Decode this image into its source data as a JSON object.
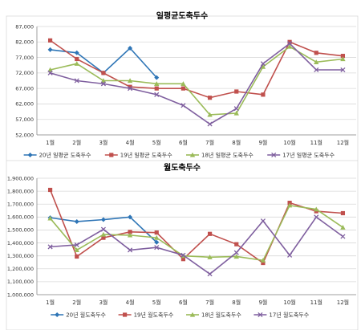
{
  "chart_data": [
    {
      "type": "line",
      "title": "일평균도축두수",
      "categories": [
        "1월",
        "2월",
        "3월",
        "4월",
        "5월",
        "6월",
        "7월",
        "8월",
        "9월",
        "10월",
        "11월",
        "12월"
      ],
      "ylim": [
        52000,
        87000
      ],
      "yticks": [
        "52,000",
        "57,000",
        "62,000",
        "67,000",
        "72,000",
        "77,000",
        "82,000",
        "87,000"
      ],
      "ytick_values": [
        52000,
        57000,
        62000,
        67000,
        72000,
        77000,
        82000,
        87000
      ],
      "grid": true,
      "legend": "bottom",
      "series": [
        {
          "name": "20년 일평균 도축두수",
          "color": "#2e75b6",
          "marker": "diamond",
          "values": [
            79500,
            78500,
            72000,
            80000,
            70500,
            null,
            null,
            null,
            null,
            null,
            null,
            null
          ]
        },
        {
          "name": "19년 일평균 도축두수",
          "color": "#c0504d",
          "marker": "square",
          "values": [
            82500,
            76500,
            72000,
            67500,
            67000,
            67000,
            64000,
            66000,
            65000,
            82000,
            78500,
            77500
          ]
        },
        {
          "name": "18년 일평균 도축두수",
          "color": "#9bbb59",
          "marker": "triangle",
          "values": [
            73000,
            75000,
            69500,
            69500,
            68500,
            68500,
            58500,
            59000,
            74000,
            80500,
            75500,
            76500
          ]
        },
        {
          "name": "17년 일평균 도축두수",
          "color": "#7f5f9f",
          "marker": "x",
          "values": [
            72000,
            69500,
            68500,
            67000,
            65000,
            61500,
            55500,
            60500,
            75000,
            81500,
            73000,
            73000
          ]
        }
      ]
    },
    {
      "type": "line",
      "title": "월도축두수",
      "categories": [
        "1월",
        "2월",
        "3월",
        "4월",
        "5월",
        "6월",
        "7월",
        "8월",
        "9월",
        "10월",
        "11월",
        "12월"
      ],
      "ylim": [
        1000000,
        1900000
      ],
      "yticks": [
        "1,000,000",
        "1,100,000",
        "1,200,000",
        "1,300,000",
        "1,400,000",
        "1,500,000",
        "1,600,000",
        "1,700,000",
        "1,800,000",
        "1,900,000"
      ],
      "ytick_values": [
        1000000,
        1100000,
        1200000,
        1300000,
        1400000,
        1500000,
        1600000,
        1700000,
        1800000,
        1900000
      ],
      "grid": true,
      "legend": "bottom",
      "series": [
        {
          "name": "20년 월도축두수",
          "color": "#2e75b6",
          "marker": "diamond",
          "values": [
            1595000,
            1565000,
            1580000,
            1600000,
            1405000,
            null,
            null,
            null,
            null,
            null,
            null,
            null
          ]
        },
        {
          "name": "19년 월도축두수",
          "color": "#c0504d",
          "marker": "square",
          "values": [
            1810000,
            1295000,
            1440000,
            1485000,
            1480000,
            1275000,
            1470000,
            1390000,
            1245000,
            1710000,
            1645000,
            1630000
          ]
        },
        {
          "name": "18년 월도축두수",
          "color": "#9bbb59",
          "marker": "triangle",
          "values": [
            1590000,
            1345000,
            1465000,
            1460000,
            1440000,
            1300000,
            1290000,
            1295000,
            1265000,
            1690000,
            1660000,
            1520000
          ]
        },
        {
          "name": "17년 월도축두수",
          "color": "#7f5f9f",
          "marker": "x",
          "values": [
            1370000,
            1385000,
            1505000,
            1345000,
            1365000,
            1305000,
            1160000,
            1325000,
            1570000,
            1305000,
            1600000,
            1450000
          ]
        }
      ]
    }
  ]
}
